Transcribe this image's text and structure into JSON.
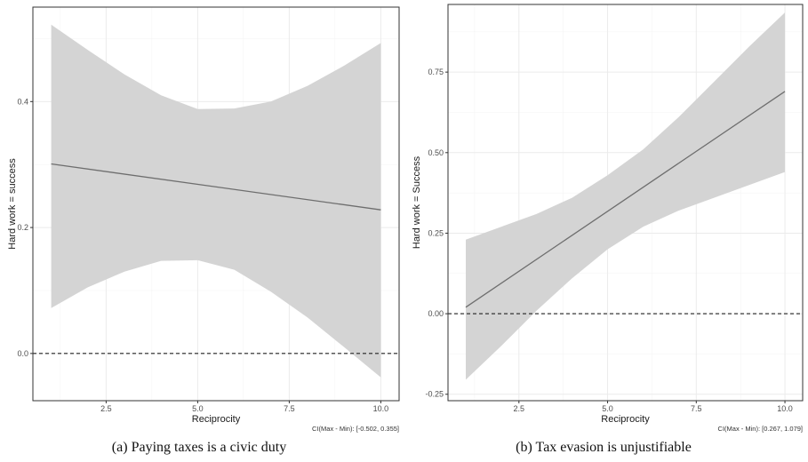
{
  "chart_data": [
    {
      "type": "line",
      "caption": "(a) Paying taxes is a civic duty",
      "xlabel": "Reciprocity",
      "ylabel": "Hard work = success",
      "xlim": [
        0.5,
        10.5
      ],
      "ylim": [
        -0.075,
        0.55
      ],
      "x_ticks": [
        2.5,
        5.0,
        7.5,
        10.0
      ],
      "x_tick_labels": [
        "2.5",
        "5.0",
        "7.5",
        "10.0"
      ],
      "y_ticks": [
        0.0,
        0.2,
        0.4
      ],
      "y_tick_labels": [
        "0.0",
        "0.2",
        "0.4"
      ],
      "grid": true,
      "reference_line": {
        "y": 0,
        "style": "dashed"
      },
      "ci_text": "CI(Max - Min): [-0.502, 0.355]",
      "series": [
        {
          "x": [
            1,
            10
          ],
          "y": [
            0.301,
            0.228
          ]
        }
      ],
      "band": {
        "x": [
          1,
          2,
          3,
          4,
          5,
          6,
          7,
          8,
          9,
          10
        ],
        "upper": [
          0.522,
          0.482,
          0.443,
          0.41,
          0.388,
          0.389,
          0.4,
          0.425,
          0.457,
          0.493
        ],
        "lower": [
          0.072,
          0.105,
          0.13,
          0.147,
          0.148,
          0.133,
          0.098,
          0.057,
          0.01,
          -0.038
        ]
      },
      "colors": {
        "band": "#d4d4d4",
        "line": "#6e6e6e",
        "grid": "#ebebeb",
        "panel_border": "#333333"
      }
    },
    {
      "type": "line",
      "caption": "(b) Tax evasion is unjustifiable",
      "xlabel": "Reciprocity",
      "ylabel": "Hard work = Success",
      "xlim": [
        0.5,
        10.5
      ],
      "ylim": [
        -0.27,
        0.96
      ],
      "x_ticks": [
        2.5,
        5.0,
        7.5,
        10.0
      ],
      "x_tick_labels": [
        "2.5",
        "5.0",
        "7.5",
        "10.0"
      ],
      "y_ticks": [
        -0.25,
        0.0,
        0.25,
        0.5,
        0.75
      ],
      "y_tick_labels": [
        "-0.25",
        "0.00",
        "0.25",
        "0.50",
        "0.75"
      ],
      "grid": true,
      "reference_line": {
        "y": 0,
        "style": "dashed"
      },
      "ci_text": "CI(Max - Min): [0.267, 1.079]",
      "series": [
        {
          "x": [
            1,
            10
          ],
          "y": [
            0.02,
            0.69
          ]
        }
      ],
      "band": {
        "x": [
          1,
          2,
          3,
          4,
          5,
          6,
          7,
          8,
          9,
          10
        ],
        "upper": [
          0.23,
          0.27,
          0.31,
          0.36,
          0.43,
          0.51,
          0.61,
          0.72,
          0.83,
          0.935
        ],
        "lower": [
          -0.205,
          -0.1,
          0.01,
          0.11,
          0.2,
          0.27,
          0.32,
          0.36,
          0.4,
          0.44
        ]
      },
      "colors": {
        "band": "#d4d4d4",
        "line": "#6e6e6e",
        "grid": "#ebebeb",
        "panel_border": "#333333"
      }
    }
  ]
}
